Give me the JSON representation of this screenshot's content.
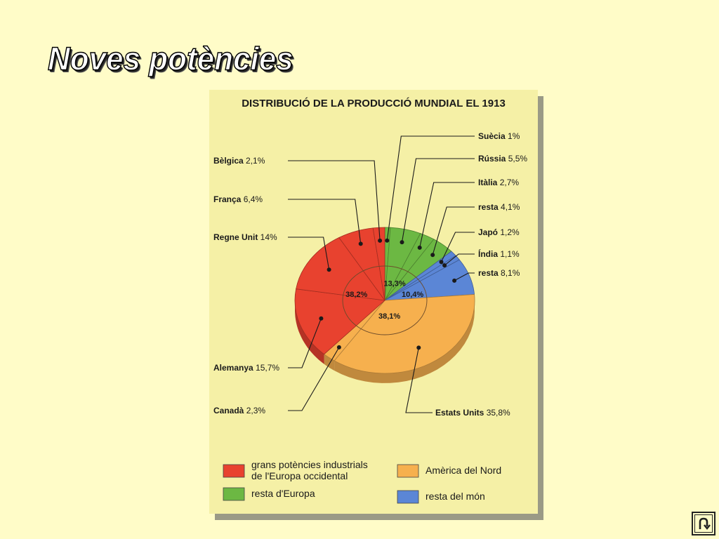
{
  "slide": {
    "title": "Noves potències"
  },
  "chart_data": {
    "type": "pie",
    "title": "DISTRIBUCIÓ DE LA PRODUCCIÓ MUNDIAL EL 1913",
    "groups": [
      {
        "key": "europa_occidental",
        "label": "grans potències industrials de l'Europa occidental",
        "label_lines": [
          "grans potències industrials",
          "de l'Europa occidental"
        ],
        "total": "38,2%",
        "value": 38.2,
        "color": "#e8422f"
      },
      {
        "key": "resta_europa",
        "label": "resta d'Europa",
        "label_lines": [
          "resta d'Europa"
        ],
        "total": "13,3%",
        "value": 13.3,
        "color": "#6cb843"
      },
      {
        "key": "resta_mon",
        "label": "resta del món",
        "label_lines": [
          "resta del món"
        ],
        "total": "10,4%",
        "value": 10.4,
        "color": "#5b86d6"
      },
      {
        "key": "america_nord",
        "label": "Amèrica del Nord",
        "label_lines": [
          "Amèrica del Nord"
        ],
        "total": "38,1%",
        "value": 38.1,
        "color": "#f6b04e"
      }
    ],
    "slices": [
      {
        "name": "Suècia",
        "pct": "1%",
        "value": 1.0,
        "group": "resta_europa"
      },
      {
        "name": "Rússia",
        "pct": "5,5%",
        "value": 5.5,
        "group": "resta_europa"
      },
      {
        "name": "Itàlia",
        "pct": "2,7%",
        "value": 2.7,
        "group": "resta_europa"
      },
      {
        "name": "resta",
        "pct": "4,1%",
        "value": 4.1,
        "group": "resta_europa"
      },
      {
        "name": "Japó",
        "pct": "1,2%",
        "value": 1.2,
        "group": "resta_mon"
      },
      {
        "name": "Índia",
        "pct": "1,1%",
        "value": 1.1,
        "group": "resta_mon"
      },
      {
        "name": "resta",
        "pct": "8,1%",
        "value": 8.1,
        "group": "resta_mon"
      },
      {
        "name": "Estats Units",
        "pct": "35,8%",
        "value": 35.8,
        "group": "america_nord"
      },
      {
        "name": "Canadà",
        "pct": "2,3%",
        "value": 2.3,
        "group": "america_nord"
      },
      {
        "name": "Alemanya",
        "pct": "15,7%",
        "value": 15.7,
        "group": "europa_occidental"
      },
      {
        "name": "Regne Unit",
        "pct": "14%",
        "value": 14.0,
        "group": "europa_occidental"
      },
      {
        "name": "França",
        "pct": "6,4%",
        "value": 6.4,
        "group": "europa_occidental"
      },
      {
        "name": "Bèlgica",
        "pct": "2,1%",
        "value": 2.1,
        "group": "europa_occidental"
      }
    ],
    "legend_placement": "bottom"
  },
  "nav": {
    "icon": "return-arrow-icon"
  }
}
